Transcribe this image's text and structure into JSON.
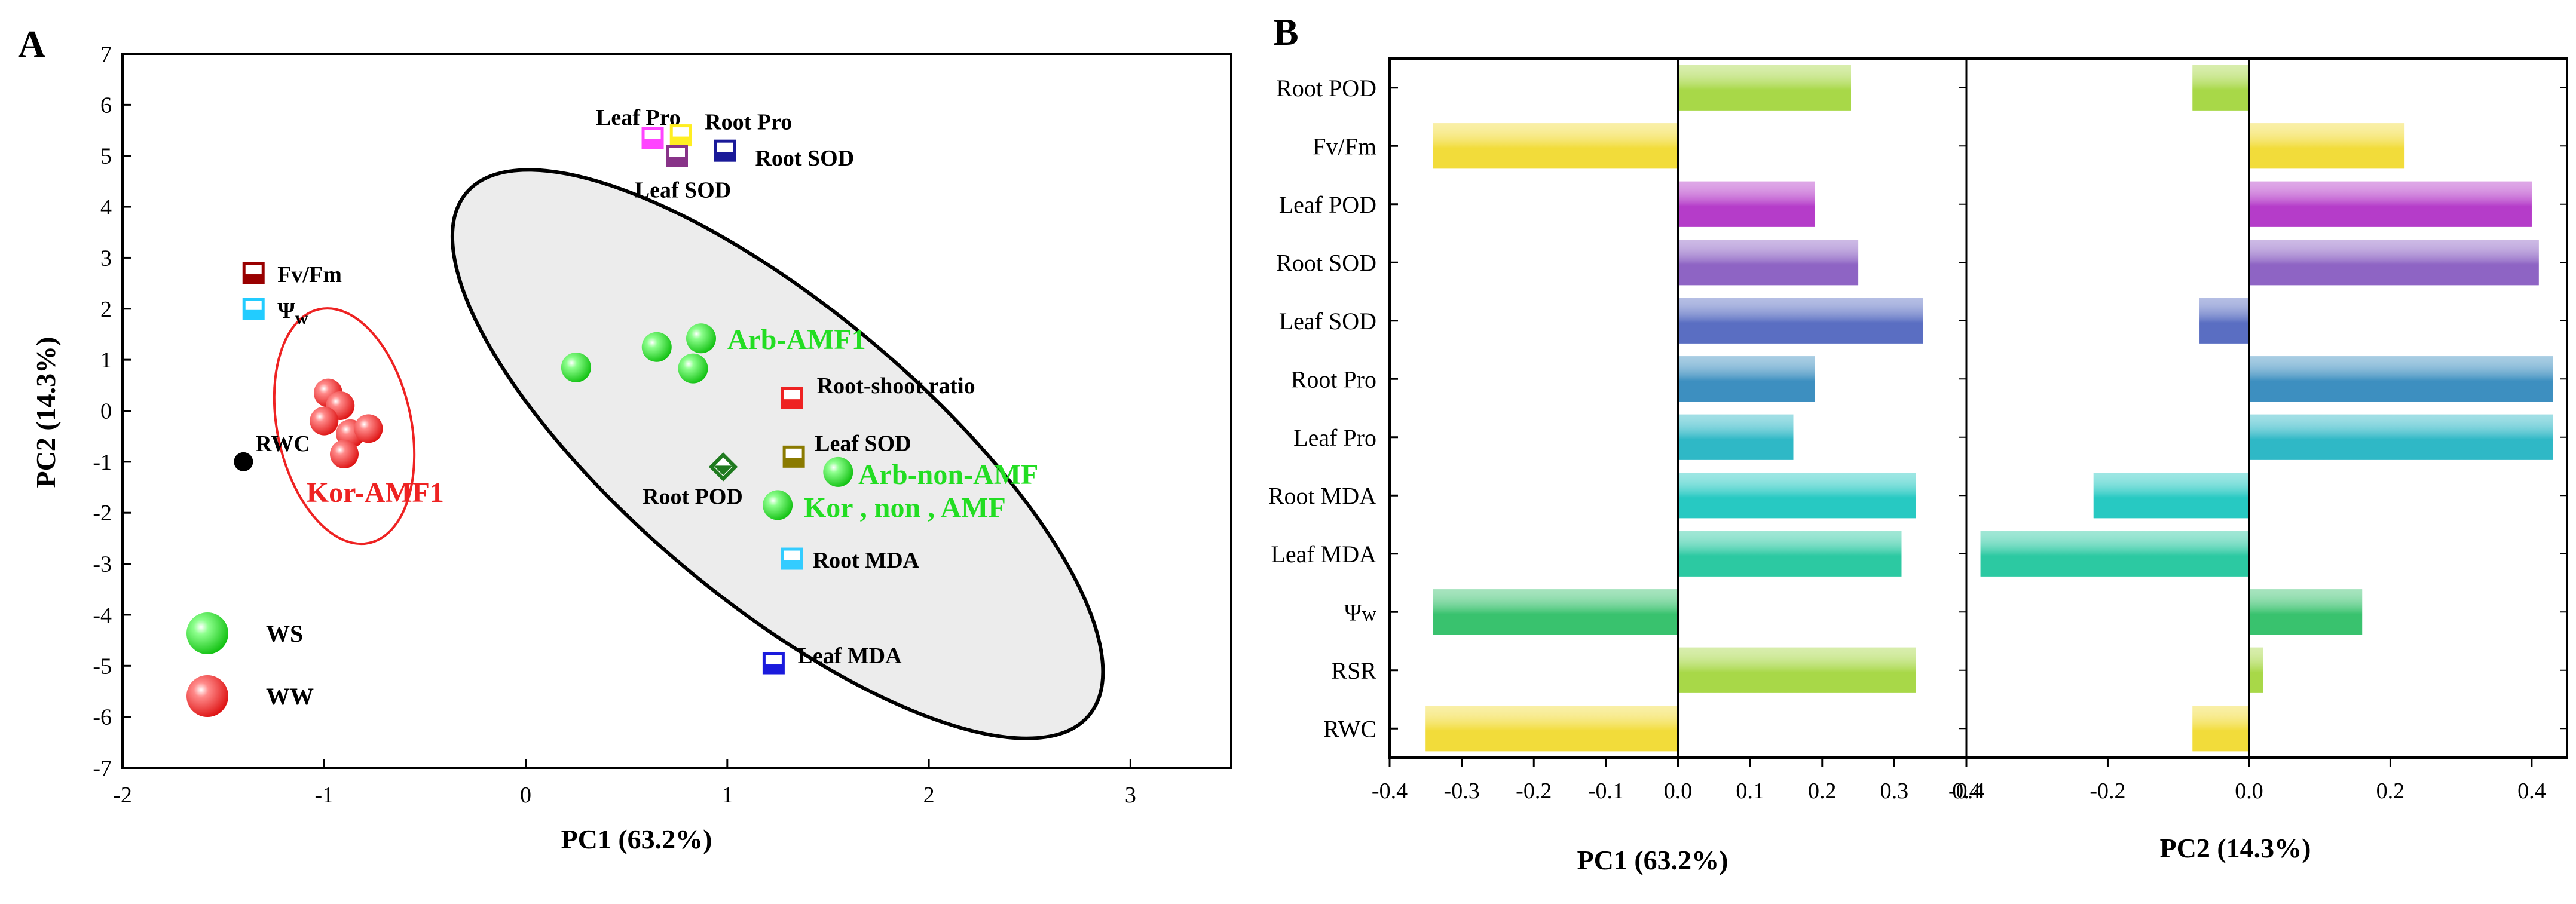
{
  "panel_a": {
    "letter": "A",
    "chart_data": {
      "type": "scatter",
      "xlabel": "PC1 (63.2%)",
      "ylabel": "PC2 (14.3%)",
      "xlim": [
        -2,
        3.5
      ],
      "ylim": [
        -7,
        7
      ],
      "xticks": [
        -2,
        -1,
        0,
        1,
        2,
        3
      ],
      "yticks": [
        -7,
        -6,
        -5,
        -4,
        -3,
        -2,
        -1,
        0,
        1,
        2,
        3,
        4,
        5,
        6,
        7
      ],
      "ws_points": [
        [
          0.25,
          0.85
        ],
        [
          0.65,
          1.25
        ],
        [
          0.87,
          1.42
        ],
        [
          0.83,
          0.83
        ],
        [
          1.25,
          -1.85
        ],
        [
          1.55,
          -1.2
        ]
      ],
      "ww_points": [
        [
          -0.98,
          0.35
        ],
        [
          -0.92,
          0.1
        ],
        [
          -1.0,
          -0.2
        ],
        [
          -0.87,
          -0.45
        ],
        [
          -0.78,
          -0.35
        ],
        [
          -0.9,
          -0.85
        ]
      ],
      "group_labels": [
        {
          "text": "Arb-AMF1",
          "x": 1.0,
          "y": 1.4,
          "color": "#22dd22"
        },
        {
          "text": "Kor-AMF1",
          "x": -0.88,
          "y": -1.6,
          "color": "#ee2222"
        },
        {
          "text": "Arb-non-AMF",
          "x": 1.65,
          "y": -1.25,
          "color": "#22dd22"
        },
        {
          "text": "Kor , non , AMF",
          "x": 1.38,
          "y": -1.9,
          "color": "#22dd22"
        }
      ],
      "loadings": [
        {
          "label": "Leaf Pro",
          "x": 0.63,
          "y": 5.35,
          "color": "#ff44ff"
        },
        {
          "label": "Root Pro",
          "x": 0.77,
          "y": 5.4,
          "color": "#ffee22"
        },
        {
          "label": "Root SOD",
          "x": 0.99,
          "y": 5.1,
          "color": "#1a1a99"
        },
        {
          "label": "Leaf SOD",
          "x": 0.75,
          "y": 5.0,
          "color": "#883388"
        },
        {
          "label": "Fv/Fm",
          "x": -1.35,
          "y": 2.7,
          "color": "#990000"
        },
        {
          "label": "Ψw",
          "x": -1.35,
          "y": 2.0,
          "color": "#22ccff"
        },
        {
          "label": "RWC",
          "x": -1.4,
          "y": -1.0,
          "color": "#000000"
        },
        {
          "label": "Root-shoot ratio",
          "x": 1.32,
          "y": 0.25,
          "color": "#ee2222"
        },
        {
          "label": "Leaf SOD",
          "x": 1.33,
          "y": -0.9,
          "color": "#8a7a00"
        },
        {
          "label": "Root POD",
          "x": 0.98,
          "y": -1.1,
          "color": "#1f7a1f"
        },
        {
          "label": "Root MDA",
          "x": 1.32,
          "y": -2.9,
          "color": "#33ccff"
        },
        {
          "label": "Leaf MDA",
          "x": 1.23,
          "y": -4.95,
          "color": "#1a1add"
        }
      ],
      "legend": [
        {
          "label": "WS",
          "color": "#22dd22"
        },
        {
          "label": "WW",
          "color": "#ee2222"
        }
      ],
      "ellipses": [
        {
          "group": "WS",
          "center": [
            1.25,
            -0.85
          ],
          "color": "#000000",
          "fill": "#ececec"
        },
        {
          "group": "WW",
          "center": [
            -0.9,
            -0.3
          ],
          "color": "#ee2222",
          "fill": "none"
        }
      ]
    }
  },
  "panel_b": {
    "letter": "B",
    "chart_data": {
      "type": "bar",
      "orientation": "horizontal",
      "categories": [
        "Root POD",
        "Fv/Fm",
        "Leaf POD",
        "Root SOD",
        "Leaf SOD",
        "Root Pro",
        "Leaf Pro",
        "Root MDA",
        "Leaf MDA",
        "Ψw",
        "RSR",
        "RWC"
      ],
      "bar_colors": [
        "#a8d848",
        "#f2dc3a",
        "#b53cc9",
        "#8e64c4",
        "#5a6ec2",
        "#3d8fc0",
        "#2fb8c6",
        "#27c9c2",
        "#2cc9a2",
        "#39c26e",
        "#a8d848",
        "#f2dc3a"
      ],
      "series": [
        {
          "name": "PC1 (63.2%)",
          "values": [
            0.24,
            -0.34,
            0.19,
            0.25,
            0.34,
            0.19,
            0.16,
            0.33,
            0.31,
            -0.34,
            0.33,
            -0.35
          ],
          "xlim": [
            -0.4,
            0.4
          ],
          "xticks": [
            -0.4,
            -0.3,
            -0.2,
            -0.1,
            0.0,
            0.1,
            0.2,
            0.3,
            0.4
          ]
        },
        {
          "name": "PC2 (14.3%)",
          "values": [
            -0.08,
            0.22,
            0.4,
            0.41,
            -0.07,
            0.43,
            0.43,
            -0.22,
            -0.38,
            0.16,
            0.02,
            -0.08
          ],
          "xlim": [
            -0.4,
            0.45
          ],
          "xticks": [
            -0.4,
            -0.2,
            0.0,
            0.2,
            0.4
          ]
        }
      ],
      "xlabel_left": "PC1 (63.2%)",
      "xlabel_right": "PC2 (14.3%)"
    }
  }
}
